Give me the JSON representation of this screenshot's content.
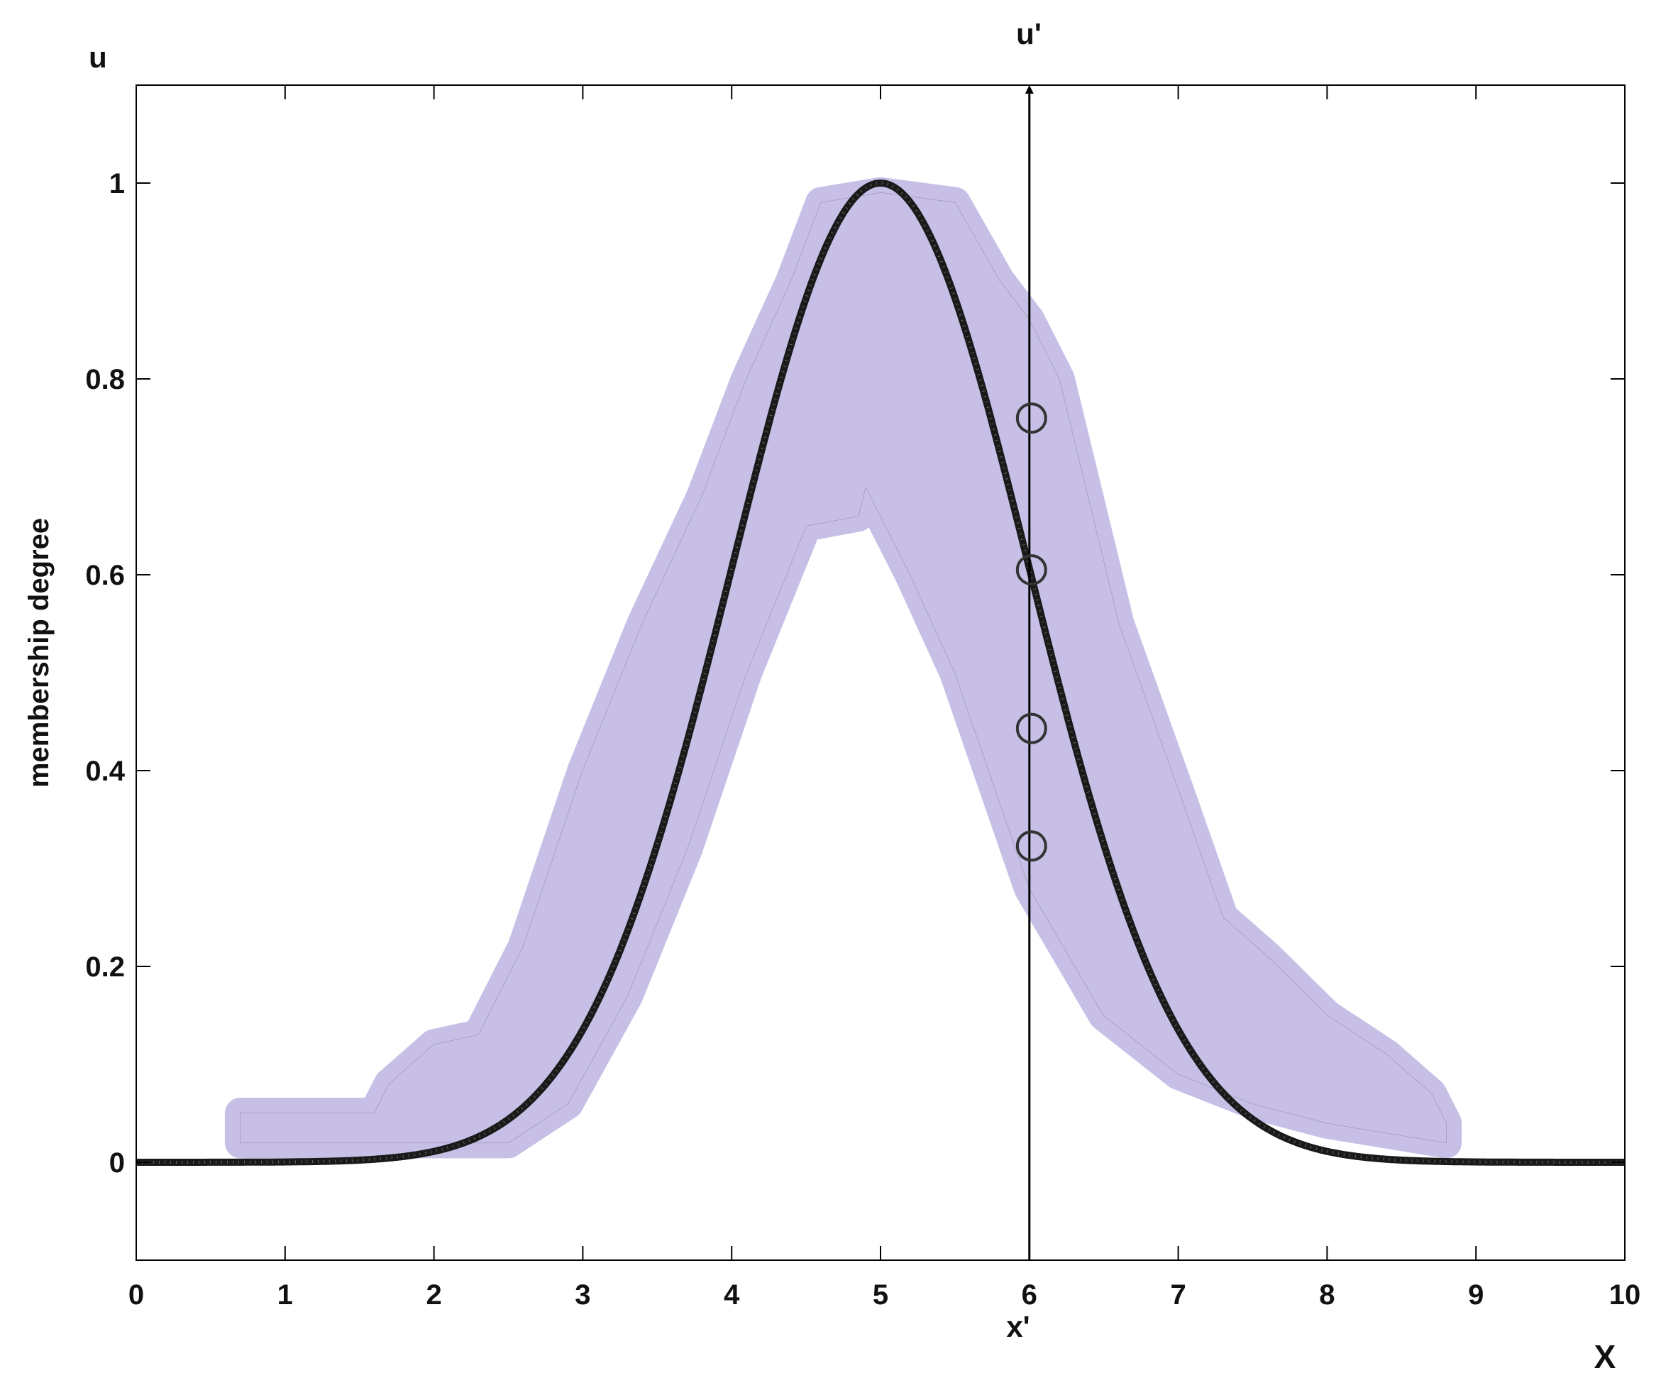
{
  "chart_data": {
    "type": "line",
    "title": "",
    "xlabel": "X",
    "ylabel": "membership degree",
    "y_axis_symbol": "u",
    "xlim": [
      0,
      10
    ],
    "ylim": [
      -0.1,
      1.1
    ],
    "x_ticks": [
      0,
      1,
      2,
      3,
      4,
      5,
      6,
      7,
      8,
      9,
      10
    ],
    "x_tick_labels": [
      "0",
      "1",
      "2",
      "3",
      "4",
      "5",
      "6",
      "7",
      "8",
      "9",
      "10"
    ],
    "y_ticks": [
      0,
      0.2,
      0.4,
      0.6,
      0.8,
      1
    ],
    "y_tick_labels": [
      "0",
      "0.2",
      "0.4",
      "0.6",
      "0.8",
      "1"
    ],
    "grid": false,
    "legend": "none",
    "series": [
      {
        "kind": "primary membership curve (dense markers)",
        "center": 5,
        "sigma": 1,
        "x_range": [
          0,
          10
        ],
        "color": "#1a1a1a"
      }
    ],
    "footprint_of_uncertainty": {
      "color": "#c8bfe7",
      "upper": [
        [
          0.7,
          0.05
        ],
        [
          1.6,
          0.05
        ],
        [
          1.7,
          0.08
        ],
        [
          2.0,
          0.12
        ],
        [
          2.3,
          0.13
        ],
        [
          2.6,
          0.22
        ],
        [
          3.0,
          0.4
        ],
        [
          3.4,
          0.55
        ],
        [
          3.8,
          0.68
        ],
        [
          4.1,
          0.8
        ],
        [
          4.4,
          0.9
        ],
        [
          4.6,
          0.98
        ],
        [
          5.0,
          0.99
        ],
        [
          5.5,
          0.98
        ],
        [
          5.8,
          0.9
        ],
        [
          6.0,
          0.86
        ],
        [
          6.2,
          0.8
        ],
        [
          6.6,
          0.55
        ],
        [
          7.0,
          0.38
        ],
        [
          7.3,
          0.25
        ],
        [
          7.6,
          0.21
        ],
        [
          8.0,
          0.15
        ],
        [
          8.4,
          0.11
        ],
        [
          8.7,
          0.07
        ],
        [
          8.8,
          0.04
        ]
      ],
      "lower": [
        [
          0.7,
          0.02
        ],
        [
          2.5,
          0.02
        ],
        [
          2.9,
          0.06
        ],
        [
          3.3,
          0.17
        ],
        [
          3.7,
          0.32
        ],
        [
          4.1,
          0.5
        ],
        [
          4.5,
          0.65
        ],
        [
          4.85,
          0.66
        ],
        [
          4.9,
          0.69
        ],
        [
          5.2,
          0.6
        ],
        [
          5.5,
          0.5
        ],
        [
          6.0,
          0.28
        ],
        [
          6.5,
          0.15
        ],
        [
          7.0,
          0.09
        ],
        [
          7.5,
          0.06
        ],
        [
          8.0,
          0.04
        ],
        [
          8.8,
          0.02
        ]
      ]
    },
    "vertical_line": {
      "x": 6,
      "x_label": "x'",
      "top_label": "u'"
    },
    "circle_markers": {
      "x": 6,
      "y": [
        0.76,
        0.605,
        0.443,
        0.323
      ]
    }
  }
}
